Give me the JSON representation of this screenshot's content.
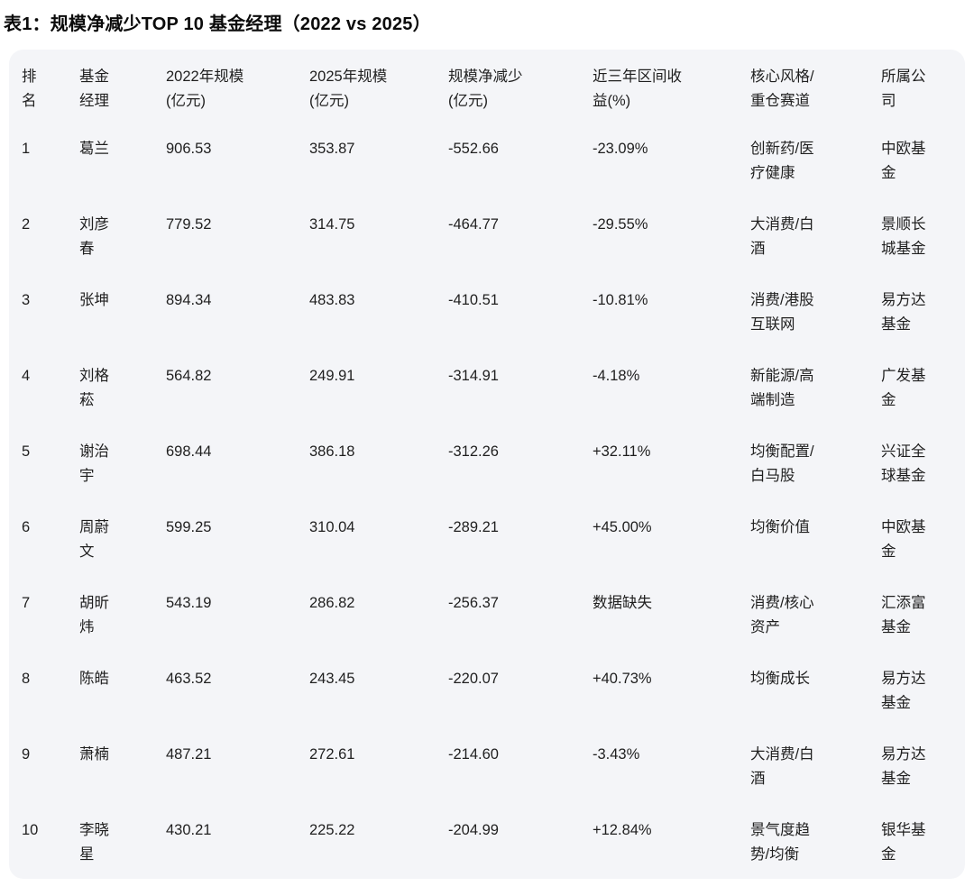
{
  "title": "表1：规模净减少TOP 10 基金经理（2022 vs 2025）",
  "colors": {
    "page_bg": "#ffffff",
    "card_bg": "#f4f5f8",
    "text": "#1f1f1f",
    "title_text": "#0b0b0b"
  },
  "table": {
    "headers": [
      "排\n名",
      "基金\n经理",
      "2022年规模\n(亿元)",
      "2025年规模\n(亿元)",
      "规模净减少\n(亿元)",
      "近三年区间收\n益(%)",
      "核心风格/\n重仓赛道",
      "所属公\n司"
    ],
    "rows": [
      [
        "1",
        "葛兰",
        "906.53",
        "353.87",
        "-552.66",
        "-23.09%",
        "创新药/医\n疗健康",
        "中欧基\n金"
      ],
      [
        "2",
        "刘彦\n春",
        "779.52",
        "314.75",
        "-464.77",
        "-29.55%",
        "大消费/白\n酒",
        "景顺长\n城基金"
      ],
      [
        "3",
        "张坤",
        "894.34",
        "483.83",
        "-410.51",
        "-10.81%",
        "消费/港股\n互联网",
        "易方达\n基金"
      ],
      [
        "4",
        "刘格\n菘",
        "564.82",
        "249.91",
        "-314.91",
        "-4.18%",
        "新能源/高\n端制造",
        "广发基\n金"
      ],
      [
        "5",
        "谢治\n宇",
        "698.44",
        "386.18",
        "-312.26",
        "+32.11%",
        "均衡配置/\n白马股",
        "兴证全\n球基金"
      ],
      [
        "6",
        "周蔚\n文",
        "599.25",
        "310.04",
        "-289.21",
        "+45.00%",
        "均衡价值",
        "中欧基\n金"
      ],
      [
        "7",
        "胡昕\n炜",
        "543.19",
        "286.82",
        "-256.37",
        "数据缺失",
        "消费/核心\n资产",
        "汇添富\n基金"
      ],
      [
        "8",
        "陈皓",
        "463.52",
        "243.45",
        "-220.07",
        "+40.73%",
        "均衡成长",
        "易方达\n基金"
      ],
      [
        "9",
        "萧楠",
        "487.21",
        "272.61",
        "-214.60",
        "-3.43%",
        "大消费/白\n酒",
        "易方达\n基金"
      ],
      [
        "10",
        "李晓\n星",
        "430.21",
        "225.22",
        "-204.99",
        "+12.84%",
        "景气度趋\n势/均衡",
        "银华基\n金"
      ]
    ]
  },
  "chart_data": {
    "type": "table",
    "title": "表1：规模净减少TOP 10 基金经理（2022 vs 2025）",
    "columns": [
      "排名",
      "基金经理",
      "2022年规模(亿元)",
      "2025年规模(亿元)",
      "规模净减少(亿元)",
      "近三年区间收益(%)",
      "核心风格/重仓赛道",
      "所属公司"
    ],
    "rows": [
      [
        1,
        "葛兰",
        906.53,
        353.87,
        -552.66,
        "-23.09%",
        "创新药/医疗健康",
        "中欧基金"
      ],
      [
        2,
        "刘彦春",
        779.52,
        314.75,
        -464.77,
        "-29.55%",
        "大消费/白酒",
        "景顺长城基金"
      ],
      [
        3,
        "张坤",
        894.34,
        483.83,
        -410.51,
        "-10.81%",
        "消费/港股互联网",
        "易方达基金"
      ],
      [
        4,
        "刘格菘",
        564.82,
        249.91,
        -314.91,
        "-4.18%",
        "新能源/高端制造",
        "广发基金"
      ],
      [
        5,
        "谢治宇",
        698.44,
        386.18,
        -312.26,
        "+32.11%",
        "均衡配置/白马股",
        "兴证全球基金"
      ],
      [
        6,
        "周蔚文",
        599.25,
        310.04,
        -289.21,
        "+45.00%",
        "均衡价值",
        "中欧基金"
      ],
      [
        7,
        "胡昕炜",
        543.19,
        286.82,
        -256.37,
        "数据缺失",
        "消费/核心资产",
        "汇添富基金"
      ],
      [
        8,
        "陈皓",
        463.52,
        243.45,
        -220.07,
        "+40.73%",
        "均衡成长",
        "易方达基金"
      ],
      [
        9,
        "萧楠",
        487.21,
        272.61,
        -214.6,
        "-3.43%",
        "大消费/白酒",
        "易方达基金"
      ],
      [
        10,
        "李晓星",
        430.21,
        225.22,
        -204.99,
        "+12.84%",
        "景气度趋势/均衡",
        "银华基金"
      ]
    ]
  }
}
